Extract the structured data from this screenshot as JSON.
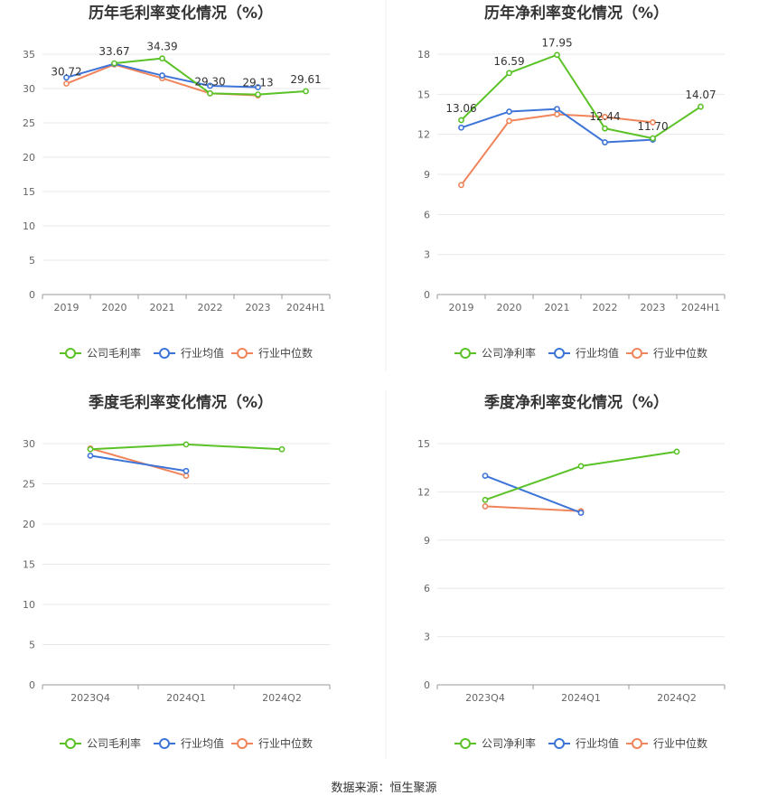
{
  "source": "数据来源：恒生聚源",
  "colors": {
    "company": "#5ac227",
    "avg": "#3d74d8",
    "median": "#f0845a",
    "grid": "#e8e8e8",
    "axis": "#999999",
    "divider": "#e6e6e6"
  },
  "chart_data": [
    {
      "type": "line",
      "title": "历年毛利率变化情况（%）",
      "categories": [
        "2019",
        "2020",
        "2021",
        "2022",
        "2023",
        "2024H1"
      ],
      "ylim": [
        0,
        35
      ],
      "yticks": [
        0,
        5,
        10,
        15,
        20,
        25,
        30,
        35
      ],
      "xlabel": "",
      "ylabel": "",
      "series": [
        {
          "key": "company",
          "name": "公司毛利率",
          "values": [
            null,
            33.67,
            34.39,
            29.3,
            29.13,
            29.61
          ]
        },
        {
          "key": "avg",
          "name": "行业均值",
          "values": [
            31.6,
            33.6,
            31.9,
            30.4,
            30.2,
            null
          ]
        },
        {
          "key": "median",
          "name": "行业中位数",
          "values": [
            30.72,
            33.5,
            31.5,
            29.3,
            29.0,
            null
          ]
        }
      ],
      "labels": [
        {
          "i": 0,
          "text": "30.72",
          "series": "median"
        },
        {
          "i": 1,
          "text": "33.67",
          "series": "company"
        },
        {
          "i": 2,
          "text": "34.39",
          "series": "company"
        },
        {
          "i": 3,
          "text": "29.30",
          "series": "company"
        },
        {
          "i": 4,
          "text": "29.13",
          "series": "company"
        },
        {
          "i": 5,
          "text": "29.61",
          "series": "company"
        }
      ],
      "legend": "bottom"
    },
    {
      "type": "line",
      "title": "历年净利率变化情况（%）",
      "categories": [
        "2019",
        "2020",
        "2021",
        "2022",
        "2023",
        "2024H1"
      ],
      "ylim": [
        0,
        18
      ],
      "yticks": [
        0,
        3,
        6,
        9,
        12,
        15,
        18
      ],
      "xlabel": "",
      "ylabel": "",
      "series": [
        {
          "key": "company",
          "name": "公司净利率",
          "values": [
            13.06,
            16.59,
            17.95,
            12.44,
            11.7,
            14.07
          ]
        },
        {
          "key": "avg",
          "name": "行业均值",
          "values": [
            12.5,
            13.7,
            13.9,
            11.4,
            11.6,
            null
          ]
        },
        {
          "key": "median",
          "name": "行业中位数",
          "values": [
            8.2,
            13.0,
            13.5,
            13.3,
            12.9,
            null
          ]
        }
      ],
      "labels": [
        {
          "i": 0,
          "text": "13.06",
          "series": "company"
        },
        {
          "i": 1,
          "text": "16.59",
          "series": "company"
        },
        {
          "i": 2,
          "text": "17.95",
          "series": "company"
        },
        {
          "i": 3,
          "text": "12.44",
          "series": "company"
        },
        {
          "i": 4,
          "text": "11.70",
          "series": "company"
        },
        {
          "i": 5,
          "text": "14.07",
          "series": "company"
        }
      ],
      "legend": "bottom"
    },
    {
      "type": "line",
      "title": "季度毛利率变化情况（%）",
      "categories": [
        "2023Q4",
        "2024Q1",
        "2024Q2"
      ],
      "ylim": [
        0,
        30
      ],
      "yticks": [
        0,
        5,
        10,
        15,
        20,
        25,
        30
      ],
      "xlabel": "",
      "ylabel": "",
      "series": [
        {
          "key": "company",
          "name": "公司毛利率",
          "values": [
            29.3,
            29.9,
            29.3
          ]
        },
        {
          "key": "avg",
          "name": "行业均值",
          "values": [
            28.5,
            26.6,
            null
          ]
        },
        {
          "key": "median",
          "name": "行业中位数",
          "values": [
            29.4,
            26.0,
            null
          ]
        }
      ],
      "labels": [],
      "legend": "bottom"
    },
    {
      "type": "line",
      "title": "季度净利率变化情况（%）",
      "categories": [
        "2023Q4",
        "2024Q1",
        "2024Q2"
      ],
      "ylim": [
        0,
        15
      ],
      "yticks": [
        0,
        3,
        6,
        9,
        12,
        15
      ],
      "xlabel": "",
      "ylabel": "",
      "series": [
        {
          "key": "company",
          "name": "公司净利率",
          "values": [
            11.5,
            13.6,
            14.5
          ]
        },
        {
          "key": "avg",
          "name": "行业均值",
          "values": [
            13.0,
            10.7,
            null
          ]
        },
        {
          "key": "median",
          "name": "行业中位数",
          "values": [
            11.1,
            10.8,
            null
          ]
        }
      ],
      "labels": [],
      "legend": "bottom"
    }
  ]
}
